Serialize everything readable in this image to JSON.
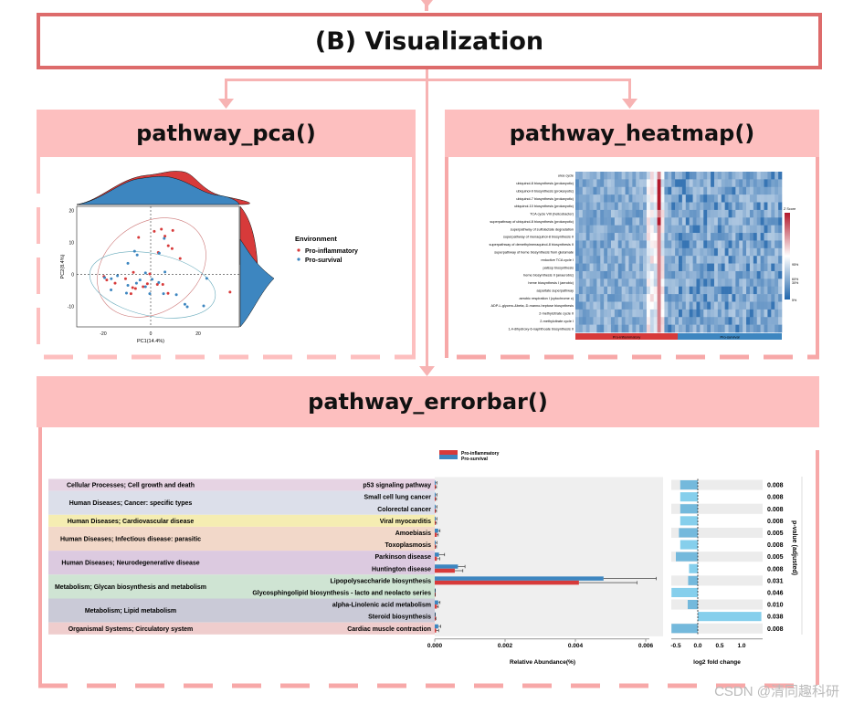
{
  "section_title": "(B) Visualization",
  "panels": {
    "pca": "pathway_pca()",
    "heatmap": "pathway_heatmap()",
    "errorbar": "pathway_errorbar()"
  },
  "colors": {
    "pro_inflammatory": "#d73a3a",
    "pro_survival": "#3d86c0",
    "frame": "#dd6b6b",
    "header_fill": "#fdbfbf",
    "fold_bar": "#7cc4e4"
  },
  "watermark": "CSDN @清同趣科研",
  "chart_data": [
    {
      "type": "scatter",
      "xlabel": "PC1(14.4%)",
      "ylabel": "PC2(8.4%)",
      "xticks": [
        "-20",
        "0",
        "20"
      ],
      "yticks": [
        "20",
        "10",
        "0",
        "-10"
      ],
      "xlim": [
        -31,
        37
      ],
      "ylim": [
        -17,
        21
      ],
      "legend_title": "Environment",
      "legend_position": "right",
      "series": [
        {
          "name": "Pro-inflammatory",
          "points": [
            [
              1.5,
              13.4
            ],
            [
              4.5,
              14.1
            ],
            [
              9.3,
              13.7
            ],
            [
              -5.1,
              11.5
            ],
            [
              6,
              11.9
            ],
            [
              7.4,
              8.9
            ],
            [
              9,
              8
            ],
            [
              3.2,
              6.8
            ],
            [
              12.4,
              4.9
            ],
            [
              -7.3,
              0.6
            ],
            [
              -0.4,
              0.1
            ],
            [
              -19.7,
              -0.7
            ],
            [
              -18.5,
              -1.8
            ],
            [
              -15,
              -2.8
            ],
            [
              -10.6,
              -1.4
            ],
            [
              -7.6,
              -4.2
            ],
            [
              -6.4,
              -4.5
            ],
            [
              -3.2,
              -3.9
            ],
            [
              -1.4,
              -3
            ],
            [
              2.8,
              -3.2
            ],
            [
              5.1,
              -3.2
            ],
            [
              -8.3,
              -6.1
            ],
            [
              7.3,
              -6
            ],
            [
              33.4,
              -5.6
            ]
          ]
        },
        {
          "name": "Pro-survival",
          "points": [
            [
              -6.8,
              7.2
            ],
            [
              -5.7,
              6
            ],
            [
              -9.6,
              3.4
            ],
            [
              5.7,
              11.2
            ],
            [
              3.6,
              6.6
            ],
            [
              6,
              0.7
            ],
            [
              -2.2,
              0.4
            ],
            [
              -14,
              -0.5
            ],
            [
              -16.6,
              -1.4
            ],
            [
              -19.4,
              -1.1
            ],
            [
              -4.5,
              -1.8
            ],
            [
              -6,
              -2.8
            ],
            [
              0.6,
              -1.6
            ],
            [
              3.4,
              -2.6
            ],
            [
              -9.6,
              -3.5
            ],
            [
              -2.2,
              -3.9
            ],
            [
              -16.7,
              -4.9
            ],
            [
              -10.2,
              -5.9
            ],
            [
              -0.4,
              -6.1
            ],
            [
              5.4,
              -6.1
            ],
            [
              10.8,
              -6.4
            ],
            [
              23.6,
              -1.3
            ],
            [
              14.4,
              -9.4
            ],
            [
              15.4,
              -10.2
            ],
            [
              22.3,
              -9.9
            ]
          ]
        }
      ]
    },
    {
      "type": "heatmap",
      "rows": [
        "urea cycle",
        "ubiquinol-8 biosynthesis (prokaryotic)",
        "ubiquinol-9 biosynthesis (prokaryotic)",
        "ubiquinol-7 biosynthesis (prokaryotic)",
        "ubiquinol-10 biosynthesis (prokaryotic)",
        "TCA cycle VIII (helicobacter)",
        "superpathway of ubiquinol-8 biosynthesis (prokaryotic)",
        "superpathway of sulfolactate degradation",
        "superpathway of menaquinol-8 biosynthesis II",
        "superpathway of demethylmenaquinol-8 biosynthesis II",
        "superpathway of heme biosynthesis from glutamate",
        "reductive TCA cycle I",
        "palEsp biosynthesis",
        "heme biosynthesis II (anaerobic)",
        "heme biosynthesis I (aerobic)",
        "aspartate superpathway",
        "aerobic respiration I (cytochrome c)",
        "ADP-L-glycero-&beta;-D-manno-heptose biosynthesis",
        "2-methylcitrate cycle II",
        "2-methylcitrate cycle I",
        "1,4-dihydroxy-6-naphthoate biosynthesis II"
      ],
      "groups": [
        "Pro-inflammatory",
        "Pro-survival"
      ],
      "legend_title": "Z Score",
      "legend_labels": [
        "95%",
        "60%",
        "30%",
        "5%"
      ],
      "colorscale": [
        "#2166ac",
        "#ffffff",
        "#b2182b"
      ]
    },
    {
      "type": "bar",
      "orientation": "horizontal",
      "xlabel": "Relative Abundance(%)",
      "xticks": [
        "0.000",
        "0.002",
        "0.004",
        "0.006"
      ],
      "xlim": [
        0,
        0.0064
      ],
      "legend": [
        "Pro-inflammatory",
        "Pro-survival"
      ],
      "legend_position": "top",
      "groups": [
        {
          "label": "Cellular Processes; Cell growth and death",
          "span": 1,
          "color": "#e6d3e3"
        },
        {
          "label": "Human Diseases; Cancer: specific types",
          "span": 2,
          "color": "#dcdfea"
        },
        {
          "label": "Human Diseases; Cardiovascular disease",
          "span": 1,
          "color": "#f5edb2"
        },
        {
          "label": "Human Diseases; Infectious disease: parasitic",
          "span": 2,
          "color": "#f2d8c9"
        },
        {
          "label": "Human Diseases; Neurodegenerative disease",
          "span": 2,
          "color": "#dccae0"
        },
        {
          "label": "Metabolism; Glycan biosynthesis and metabolism",
          "span": 2,
          "color": "#cfe4d3"
        },
        {
          "label": "Metabolism; Lipid metabolism",
          "span": 2,
          "color": "#cacad7"
        },
        {
          "label": "Organismal Systems; Circulatory system",
          "span": 1,
          "color": "#efcdcd"
        }
      ],
      "categories": [
        "p53 signaling pathway",
        "Small cell lung cancer",
        "Colorectal cancer",
        "Viral myocarditis",
        "Amoebiasis",
        "Toxoplasmosis",
        "Parkinson disease",
        "Huntington disease",
        "Lipopolysaccharide biosynthesis",
        "Glycosphingolipid biosynthesis - lacto and neolacto series",
        "alpha-Linolenic acid metabolism",
        "Steroid biosynthesis",
        "Cardiac muscle contraction"
      ],
      "series": [
        {
          "name": "Pro-inflammatory",
          "values": [
            1e-05,
            1e-05,
            1e-05,
            1e-05,
            6e-05,
            1e-05,
            6e-05,
            0.00057,
            0.0041,
            3e-06,
            6e-05,
            3e-06,
            4e-05
          ],
          "errors": [
            4e-05,
            4e-05,
            4e-05,
            4e-05,
            4e-05,
            4e-05,
            8e-05,
            0.00023,
            0.00165,
            1e-05,
            4e-05,
            3e-05,
            7e-05
          ]
        },
        {
          "name": "Pro-survival",
          "values": [
            2e-05,
            2e-05,
            2e-05,
            2e-05,
            0.0001,
            2e-05,
            0.00012,
            0.00066,
            0.0048,
            5e-06,
            0.0001,
            5e-06,
            0.0001
          ],
          "errors": [
            4e-05,
            4e-05,
            4e-05,
            4e-05,
            5e-05,
            4e-05,
            0.00016,
            0.0002,
            0.0015,
            1e-05,
            5e-05,
            1e-05,
            7e-05
          ]
        }
      ],
      "fold_change": {
        "xlabel": "log2 fold change",
        "xticks": [
          "-0.5",
          "0.0",
          "0.5",
          "1.0"
        ],
        "xlim": [
          -0.62,
          1.45
        ],
        "values": [
          -0.4,
          -0.4,
          -0.4,
          -0.4,
          -0.43,
          -0.4,
          -0.5,
          -0.2,
          -0.22,
          -0.6,
          -0.23,
          1.45,
          -0.6
        ]
      },
      "p_values": {
        "label": "p-value (adjusted)",
        "values": [
          "0.008",
          "0.008",
          "0.008",
          "0.008",
          "0.005",
          "0.008",
          "0.005",
          "0.008",
          "0.031",
          "0.046",
          "0.010",
          "0.038",
          "0.008"
        ]
      }
    }
  ]
}
